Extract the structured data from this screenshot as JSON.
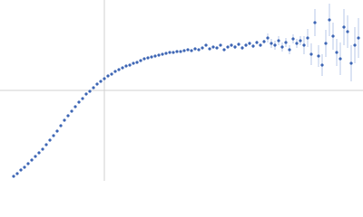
{
  "chart_data": {
    "type": "scatter",
    "xlim": [
      0,
      4
    ],
    "ylim": [
      -1,
      1
    ],
    "reference_x": [
      1.15
    ],
    "reference_y": [
      0
    ],
    "color": "#3f67b5",
    "error_color": "#a9bde3",
    "reference_color": "#d0d0d0",
    "x": [
      0.15,
      0.19,
      0.23,
      0.27,
      0.31,
      0.35,
      0.39,
      0.43,
      0.47,
      0.51,
      0.55,
      0.59,
      0.63,
      0.67,
      0.71,
      0.75,
      0.79,
      0.83,
      0.87,
      0.91,
      0.95,
      0.99,
      1.03,
      1.07,
      1.11,
      1.15,
      1.19,
      1.23,
      1.27,
      1.31,
      1.35,
      1.39,
      1.43,
      1.47,
      1.51,
      1.55,
      1.59,
      1.63,
      1.67,
      1.71,
      1.75,
      1.79,
      1.83,
      1.87,
      1.91,
      1.95,
      1.99,
      2.03,
      2.07,
      2.11,
      2.15,
      2.19,
      2.23,
      2.27,
      2.31,
      2.35,
      2.39,
      2.43,
      2.47,
      2.51,
      2.55,
      2.59,
      2.63,
      2.67,
      2.71,
      2.75,
      2.79,
      2.83,
      2.87,
      2.91,
      2.95,
      2.99,
      3.03,
      3.07,
      3.11,
      3.15,
      3.19,
      3.23,
      3.27,
      3.31,
      3.35,
      3.39,
      3.43,
      3.47,
      3.51,
      3.55,
      3.59,
      3.63,
      3.67,
      3.71,
      3.75,
      3.79,
      3.83,
      3.87,
      3.91,
      3.95
    ],
    "values": [
      -0.95,
      -0.92,
      -0.88,
      -0.85,
      -0.81,
      -0.77,
      -0.73,
      -0.69,
      -0.65,
      -0.6,
      -0.55,
      -0.5,
      -0.45,
      -0.39,
      -0.33,
      -0.28,
      -0.23,
      -0.18,
      -0.13,
      -0.09,
      -0.04,
      -0.01,
      0.03,
      0.07,
      0.1,
      0.13,
      0.16,
      0.18,
      0.21,
      0.23,
      0.25,
      0.27,
      0.28,
      0.3,
      0.31,
      0.33,
      0.35,
      0.36,
      0.37,
      0.38,
      0.39,
      0.4,
      0.41,
      0.42,
      0.42,
      0.43,
      0.43,
      0.44,
      0.45,
      0.44,
      0.46,
      0.45,
      0.47,
      0.5,
      0.46,
      0.48,
      0.47,
      0.5,
      0.45,
      0.48,
      0.5,
      0.48,
      0.51,
      0.47,
      0.5,
      0.52,
      0.49,
      0.53,
      0.5,
      0.54,
      0.58,
      0.52,
      0.5,
      0.55,
      0.48,
      0.53,
      0.45,
      0.57,
      0.52,
      0.55,
      0.5,
      0.58,
      0.4,
      0.75,
      0.38,
      0.28,
      0.52,
      0.78,
      0.6,
      0.42,
      0.35,
      0.7,
      0.65,
      0.3,
      0.5,
      0.58
    ],
    "errors": [
      0.01,
      0.01,
      0.01,
      0.01,
      0.01,
      0.01,
      0.01,
      0.01,
      0.01,
      0.01,
      0.01,
      0.01,
      0.01,
      0.01,
      0.01,
      0.01,
      0.01,
      0.01,
      0.01,
      0.01,
      0.01,
      0.01,
      0.01,
      0.01,
      0.01,
      0.01,
      0.01,
      0.01,
      0.01,
      0.01,
      0.01,
      0.01,
      0.01,
      0.01,
      0.01,
      0.01,
      0.01,
      0.01,
      0.01,
      0.01,
      0.01,
      0.01,
      0.01,
      0.01,
      0.01,
      0.01,
      0.01,
      0.01,
      0.01,
      0.01,
      0.01,
      0.01,
      0.01,
      0.01,
      0.01,
      0.01,
      0.01,
      0.01,
      0.01,
      0.01,
      0.02,
      0.02,
      0.02,
      0.02,
      0.02,
      0.02,
      0.02,
      0.02,
      0.02,
      0.02,
      0.05,
      0.05,
      0.05,
      0.05,
      0.05,
      0.05,
      0.05,
      0.05,
      0.05,
      0.05,
      0.1,
      0.1,
      0.12,
      0.15,
      0.12,
      0.12,
      0.15,
      0.18,
      0.15,
      0.15,
      0.18,
      0.2,
      0.18,
      0.2,
      0.2,
      0.22
    ]
  }
}
